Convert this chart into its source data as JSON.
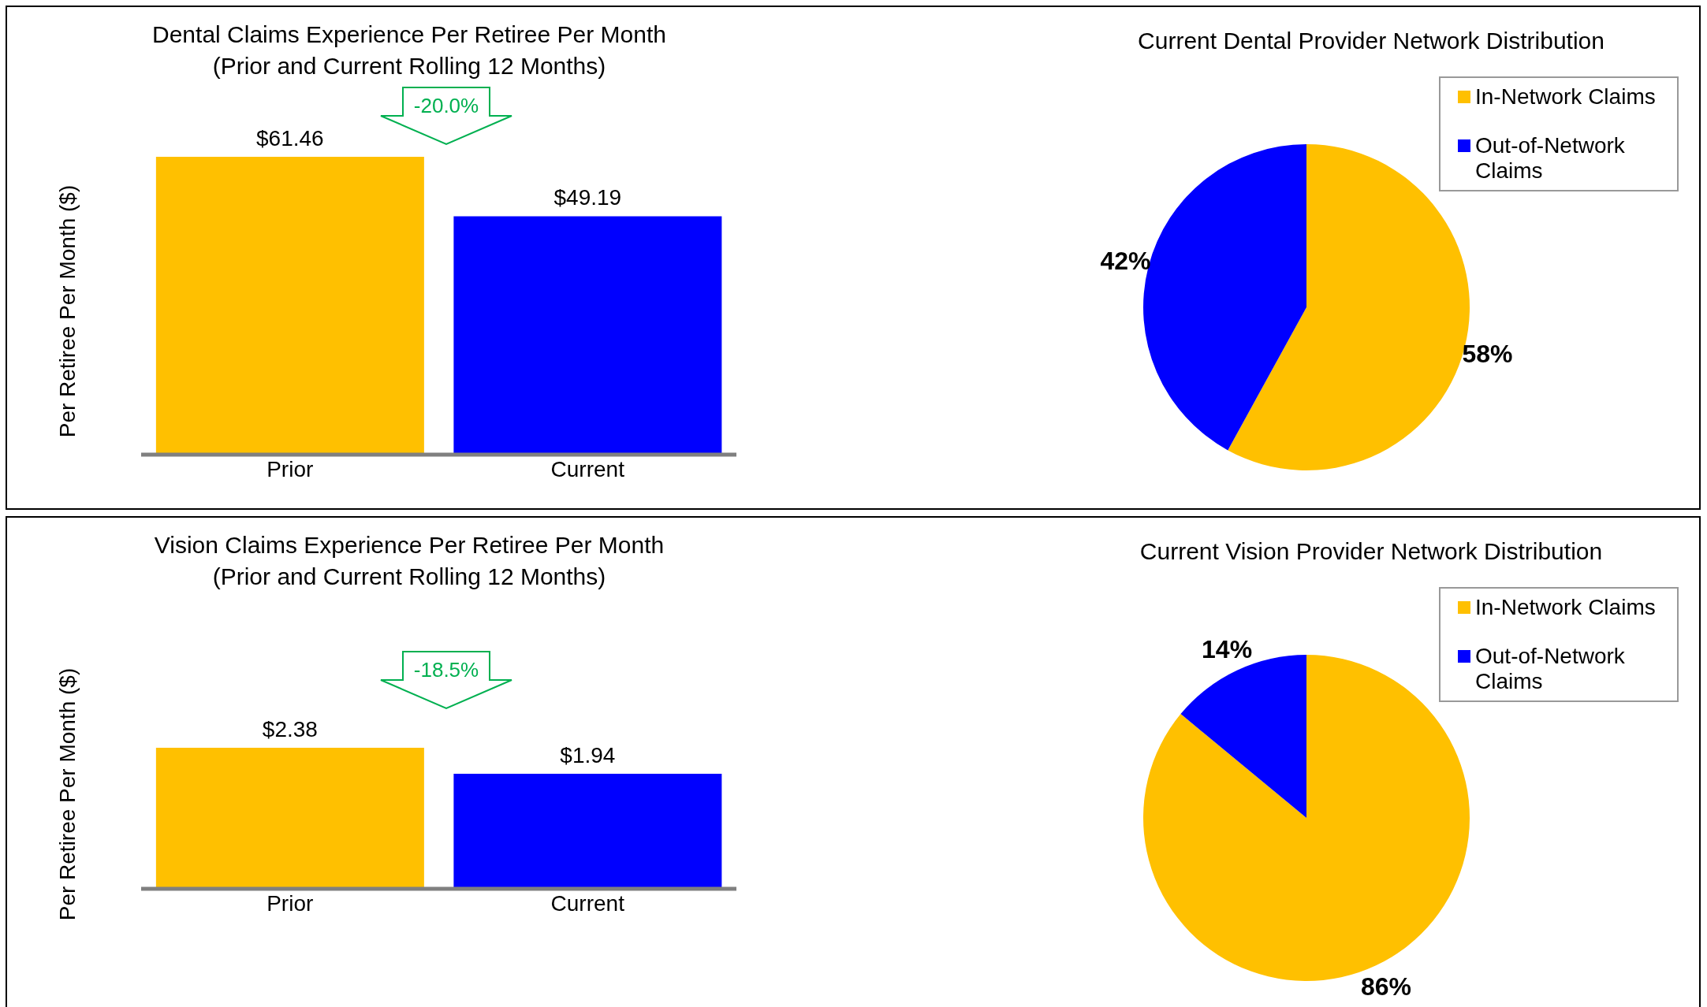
{
  "chart_data": [
    {
      "type": "bar",
      "title": "Dental Claims Experience Per Retiree Per Month",
      "subtitle": "(Prior and Current Rolling 12 Months)",
      "ylabel": "Per Retiree Per Month ($)",
      "categories": [
        "Prior",
        "Current"
      ],
      "values": [
        61.46,
        49.19
      ],
      "colors": [
        "#ffc000",
        "#0000ff"
      ],
      "value_labels": [
        "$61.46",
        "$49.19"
      ],
      "annotations": [
        "-20.0%"
      ]
    },
    {
      "type": "pie",
      "title": "Current Dental Provider Network Distribution",
      "categories": [
        "In-Network Claims",
        "Out-of-Network Claims"
      ],
      "values": [
        58,
        42
      ],
      "colors": [
        "#ffc000",
        "#0000ff"
      ],
      "value_labels": [
        "58%",
        "42%"
      ],
      "legend": "top right"
    },
    {
      "type": "bar",
      "title": "Vision Claims Experience Per Retiree Per Month",
      "subtitle": "(Prior and Current Rolling 12 Months)",
      "ylabel": "Per Retiree Per Month ($)",
      "categories": [
        "Prior",
        "Current"
      ],
      "values": [
        2.38,
        1.94
      ],
      "colors": [
        "#ffc000",
        "#0000ff"
      ],
      "value_labels": [
        "$2.38",
        "$1.94"
      ],
      "annotations": [
        "-18.5%"
      ]
    },
    {
      "type": "pie",
      "title": "Current Vision Provider Network Distribution",
      "categories": [
        "In-Network Claims",
        "Out-of-Network Claims"
      ],
      "values": [
        86,
        14
      ],
      "colors": [
        "#ffc000",
        "#0000ff"
      ],
      "value_labels": [
        "86%",
        "14%"
      ],
      "legend": "top right"
    }
  ]
}
